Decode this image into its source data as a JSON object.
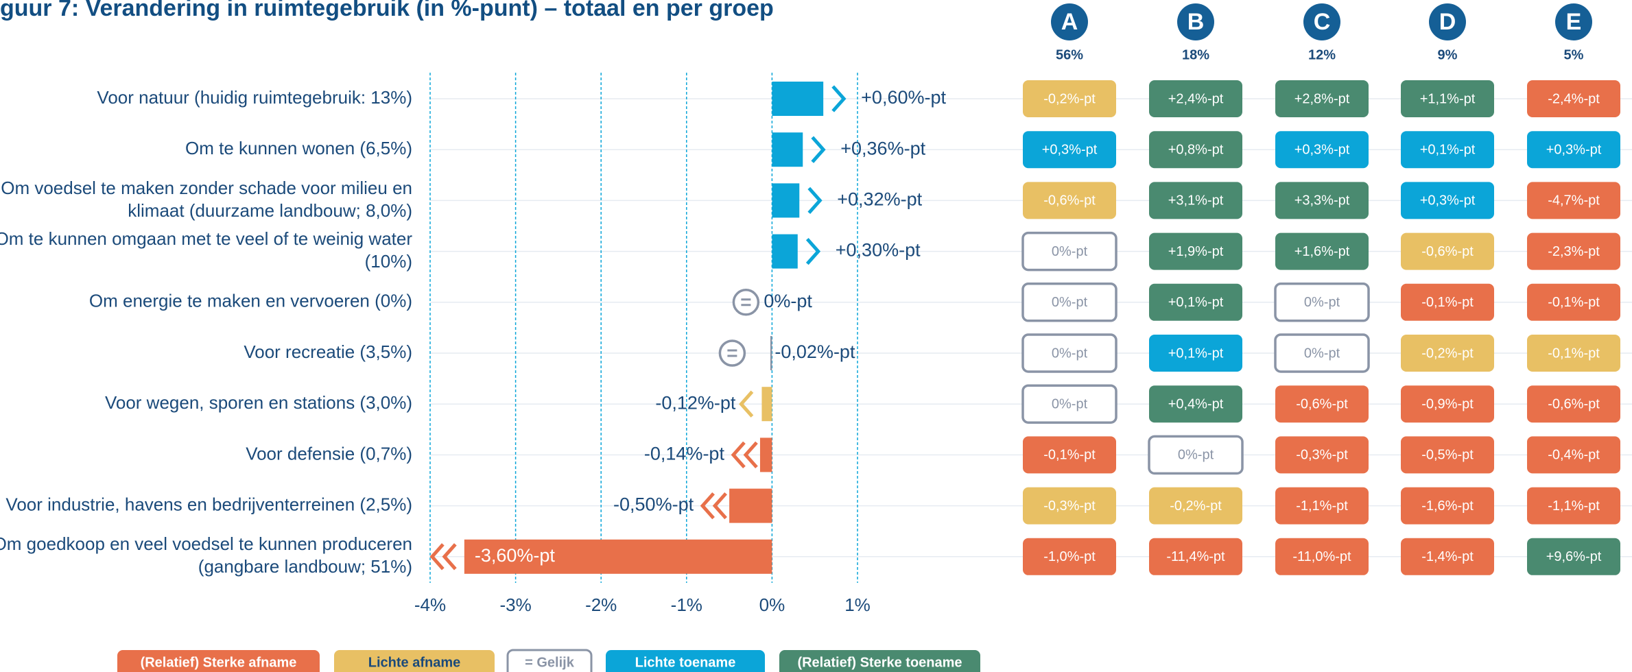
{
  "chart_data": {
    "type": "bar",
    "orientation": "horizontal",
    "title": "guur 7: Verandering in ruimtegebruik (in %-punt) – totaal en per groep",
    "categories": [
      [
        "Voor natuur (huidig ruimtegebruik: 13%)"
      ],
      [
        "Om te kunnen wonen (6,5%)"
      ],
      [
        "Om voedsel te maken zonder schade voor milieu en",
        "klimaat (duurzame landbouw; 8,0%)"
      ],
      [
        "Om te kunnen omgaan met te veel of te weinig water",
        "(10%)"
      ],
      [
        "Om energie te maken en vervoeren (0%)"
      ],
      [
        "Voor recreatie (3,5%)"
      ],
      [
        "Voor wegen, sporen en stations (3,0%)"
      ],
      [
        "Voor defensie (0,7%)"
      ],
      [
        "Voor industrie, havens en bedrijventerreinen (2,5%)"
      ],
      [
        "Om goedkoop en veel voedsel te kunnen produceren",
        "(gangbare landbouw; 51%)"
      ]
    ],
    "values": [
      0.6,
      0.36,
      0.32,
      0.3,
      0,
      -0.02,
      -0.12,
      -0.14,
      -0.5,
      -3.6
    ],
    "value_labels": [
      "+0,60%-pt",
      "+0,36%-pt",
      "+0,32%-pt",
      "+0,30%-pt",
      "0%-pt",
      "-0,02%-pt",
      "-0,12%-pt",
      "-0,14%-pt",
      "-0,50%-pt",
      "-3,60%-pt"
    ],
    "classes": [
      3,
      3,
      3,
      3,
      2,
      2,
      1,
      0,
      0,
      0
    ],
    "xlim": [
      -4,
      1
    ],
    "xticks": [
      {
        "value": -4,
        "label": "-4%"
      },
      {
        "value": -3,
        "label": "-3%"
      },
      {
        "value": -2,
        "label": "-2%"
      },
      {
        "value": -1,
        "label": "-1%"
      },
      {
        "value": 0,
        "label": "0%"
      },
      {
        "value": 1,
        "label": "1%"
      }
    ],
    "grid": true,
    "legend": [
      {
        "name": "(Relatief) Sterke afname",
        "color": "#e8704a"
      },
      {
        "name": "Lichte afname",
        "color": "#e8c064"
      },
      {
        "name": "= Gelijk",
        "color": "#8a94a6"
      },
      {
        "name": "Lichte toename",
        "color": "#0ba5d8"
      },
      {
        "name": "(Relatief) Sterke toename",
        "color": "#4a8a70"
      }
    ],
    "groups": [
      {
        "name": "A",
        "share": "56%",
        "cells": [
          "-0,2%-pt",
          "+0,3%-pt",
          "-0,6%-pt",
          "0%-pt",
          "0%-pt",
          "0%-pt",
          "0%-pt",
          "-0,1%-pt",
          "-0,3%-pt",
          "-1,0%-pt"
        ],
        "classes": [
          1,
          3,
          1,
          2,
          2,
          2,
          2,
          0,
          1,
          0
        ]
      },
      {
        "name": "B",
        "share": "18%",
        "cells": [
          "+2,4%-pt",
          "+0,8%-pt",
          "+3,1%-pt",
          "+1,9%-pt",
          "+0,1%-pt",
          "+0,1%-pt",
          "+0,4%-pt",
          "0%-pt",
          "-0,2%-pt",
          "-11,4%-pt"
        ],
        "classes": [
          4,
          4,
          4,
          4,
          4,
          3,
          4,
          2,
          1,
          0
        ]
      },
      {
        "name": "C",
        "share": "12%",
        "cells": [
          "+2,8%-pt",
          "+0,3%-pt",
          "+3,3%-pt",
          "+1,6%-pt",
          "0%-pt",
          "0%-pt",
          "-0,6%-pt",
          "-0,3%-pt",
          "-1,1%-pt",
          "-11,0%-pt"
        ],
        "classes": [
          4,
          3,
          4,
          4,
          2,
          2,
          0,
          0,
          0,
          0
        ]
      },
      {
        "name": "D",
        "share": "9%",
        "cells": [
          "+1,1%-pt",
          "+0,1%-pt",
          "+0,3%-pt",
          "-0,6%-pt",
          "-0,1%-pt",
          "-0,2%-pt",
          "-0,9%-pt",
          "-0,5%-pt",
          "-1,6%-pt",
          "-1,4%-pt"
        ],
        "classes": [
          4,
          3,
          3,
          1,
          0,
          1,
          0,
          0,
          0,
          0
        ]
      },
      {
        "name": "E",
        "share": "5%",
        "cells": [
          "-2,4%-pt",
          "+0,3%-pt",
          "-4,7%-pt",
          "-2,3%-pt",
          "-0,1%-pt",
          "-0,1%-pt",
          "-0,6%-pt",
          "-0,4%-pt",
          "-1,1%-pt",
          "+9,6%-pt"
        ],
        "classes": [
          0,
          3,
          0,
          0,
          0,
          1,
          0,
          0,
          0,
          4
        ]
      }
    ]
  }
}
